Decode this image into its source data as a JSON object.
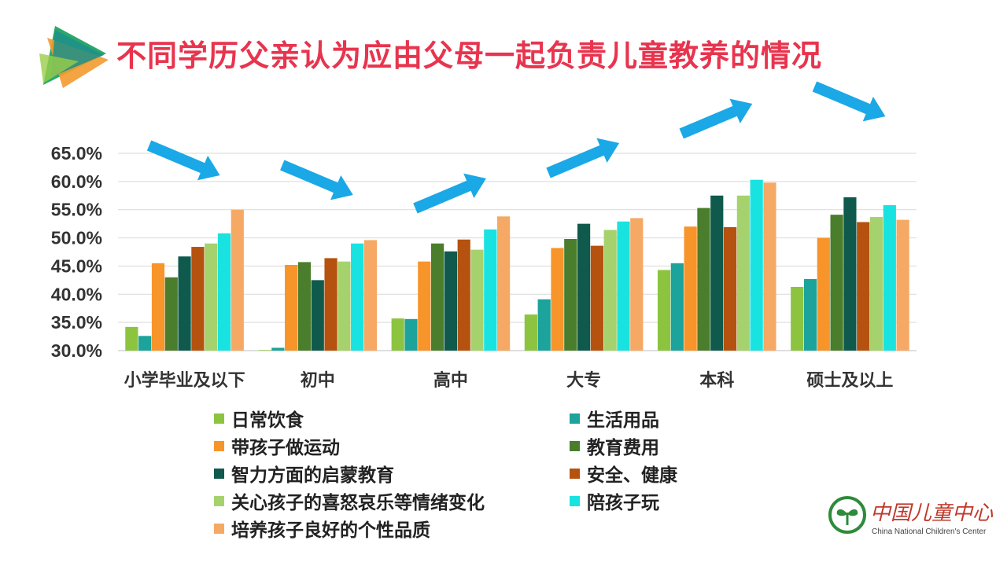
{
  "title": "不同学历父亲认为应由父母一起负责儿童教养的情况",
  "colors": {
    "title": "#e8344e",
    "arrow": "#1aa8e6",
    "series": [
      "#8cc43f",
      "#1ba39c",
      "#f7942a",
      "#4a7d2c",
      "#0f5a4c",
      "#b5520f",
      "#a6d26e",
      "#19e3e0",
      "#f5a964"
    ]
  },
  "logo": {
    "name_cn": "中国儿童中心",
    "name_en": "China National Children's Center"
  },
  "chart_data": {
    "type": "bar",
    "title": "不同学历父亲认为应由父母一起负责儿童教养的情况",
    "categories": [
      "小学毕业及以下",
      "初中",
      "高中",
      "大专",
      "本科",
      "硕士及以上"
    ],
    "ylim": [
      30,
      65
    ],
    "ytick_labels": [
      "65.0%",
      "60.0%",
      "55.0%",
      "50.0%",
      "45.0%",
      "40.0%",
      "35.0%",
      "30.0%"
    ],
    "yticks": [
      65,
      60,
      55,
      50,
      45,
      40,
      35,
      30
    ],
    "grid": true,
    "legend_position": "bottom",
    "series": [
      {
        "name": "日常饮食",
        "values": [
          34.2,
          30.1,
          35.7,
          36.4,
          44.3,
          41.3
        ]
      },
      {
        "name": "生活用品",
        "values": [
          32.6,
          30.5,
          35.6,
          39.1,
          45.5,
          42.7
        ]
      },
      {
        "name": "带孩子做运动",
        "values": [
          45.5,
          45.2,
          45.8,
          48.2,
          52.0,
          50.0
        ]
      },
      {
        "name": "教育费用",
        "values": [
          43.0,
          45.7,
          49.0,
          49.8,
          55.3,
          54.1
        ]
      },
      {
        "name": "智力方面的启蒙教育",
        "values": [
          46.7,
          42.5,
          47.6,
          52.5,
          57.5,
          57.2
        ]
      },
      {
        "name": "安全、健康",
        "values": [
          48.4,
          46.4,
          49.7,
          48.6,
          51.9,
          52.8
        ]
      },
      {
        "name": "关心孩子的喜怒哀乐等情绪变化",
        "values": [
          49.0,
          45.8,
          47.9,
          51.4,
          57.5,
          53.7
        ]
      },
      {
        "name": "陪孩子玩",
        "values": [
          50.8,
          49.0,
          51.5,
          52.9,
          60.3,
          55.8
        ]
      },
      {
        "name": "培养孩子良好的个性品质",
        "values": [
          55.0,
          49.6,
          53.8,
          53.5,
          59.8,
          53.2
        ]
      }
    ],
    "trend_arrows": [
      "down",
      "down",
      "up",
      "up",
      "up",
      "down"
    ]
  }
}
